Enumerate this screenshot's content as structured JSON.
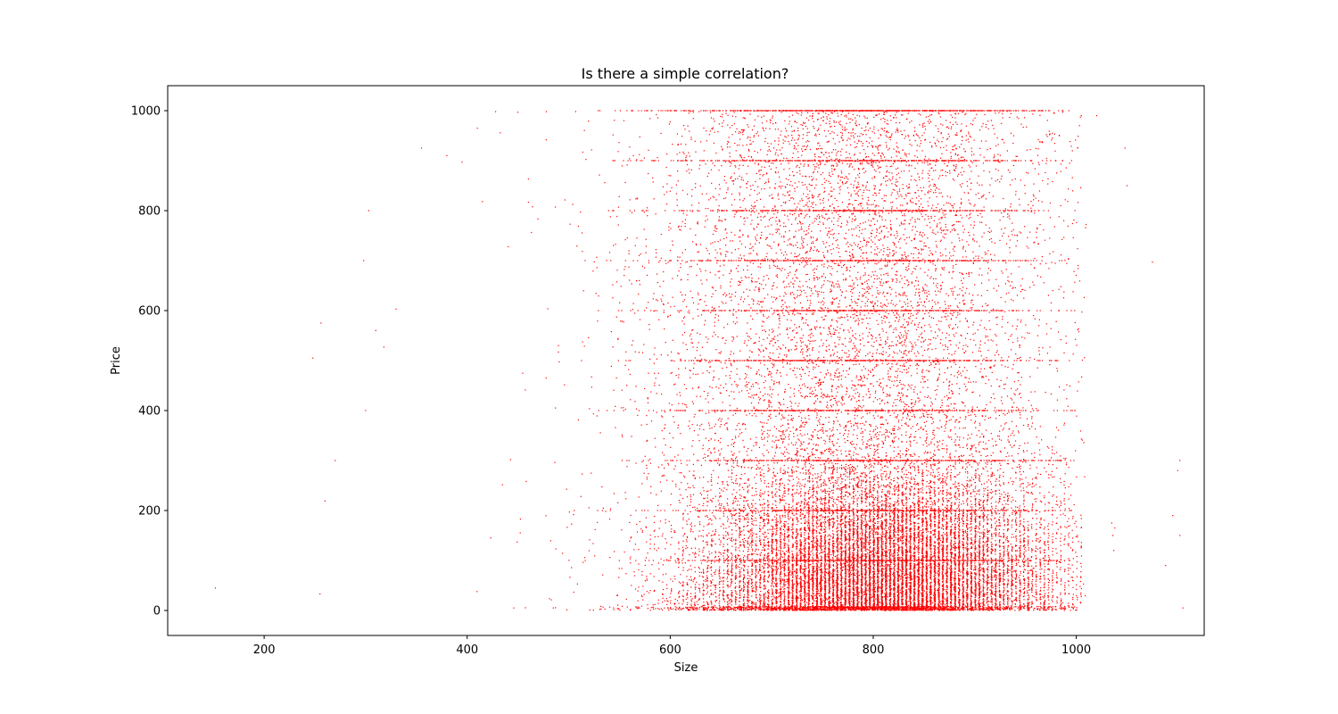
{
  "chart_data": {
    "type": "scatter",
    "title": "Is there a simple correlation?",
    "xlabel": "Size",
    "ylabel": "Price",
    "xlim": [
      105,
      1126
    ],
    "ylim": [
      -50,
      1050
    ],
    "xticks": [
      200,
      400,
      600,
      800,
      1000
    ],
    "yticks": [
      0,
      200,
      400,
      600,
      800,
      1000
    ],
    "grid": false,
    "marker_color": "#ff0000",
    "series": [
      {
        "points_note_omitted": false,
        "sample_points": [
          [
            152,
            45
          ],
          [
            255,
            33
          ],
          [
            248,
            505
          ],
          [
            256,
            575
          ],
          [
            260,
            219
          ],
          [
            270,
            300
          ],
          [
            298,
            700
          ],
          [
            303,
            800
          ],
          [
            300,
            400
          ],
          [
            310,
            560
          ],
          [
            318,
            527
          ],
          [
            330,
            603
          ],
          [
            355,
            925
          ],
          [
            380,
            910
          ],
          [
            395,
            897
          ],
          [
            410,
            965
          ],
          [
            415,
            818
          ],
          [
            428,
            998
          ],
          [
            450,
            997
          ],
          [
            478,
            998
          ],
          [
            1005,
            990
          ],
          [
            1020,
            990
          ],
          [
            1048,
            925
          ],
          [
            1050,
            850
          ],
          [
            1075,
            697
          ],
          [
            1088,
            90
          ],
          [
            1100,
            280
          ],
          [
            1102,
            300
          ],
          [
            1102,
            150
          ],
          [
            1105,
            5
          ],
          [
            1095,
            190
          ],
          [
            1035,
            175
          ],
          [
            1036,
            150
          ],
          [
            1037,
            120
          ],
          [
            1038,
            165
          ]
        ]
      }
    ],
    "density_model": {
      "core_center_x": 810,
      "core_sigma_x": 85,
      "core_y_max": 320,
      "overall_x_range": [
        380,
        1010
      ],
      "price_rounding_levels": [
        100,
        200,
        300,
        400,
        500,
        600,
        700,
        800,
        900,
        1000
      ]
    }
  }
}
